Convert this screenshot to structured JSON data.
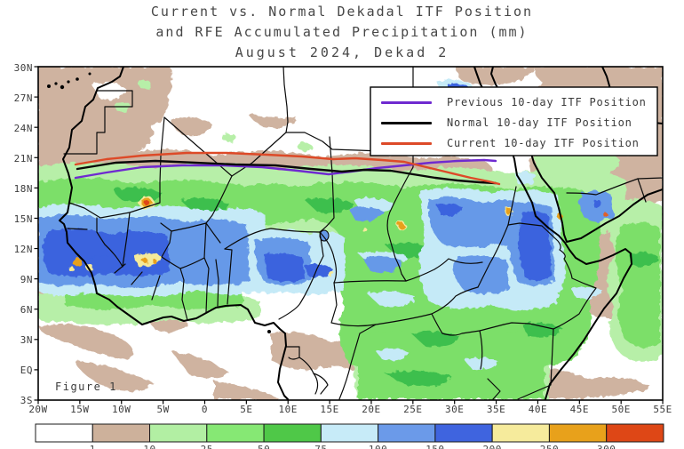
{
  "title": {
    "line1": "Current vs. Normal Dekadal ITF Position",
    "line2": "and RFE Accumulated Precipitation (mm)",
    "line3": "August 2024, Dekad 2"
  },
  "figure_label": "Figure 1",
  "legend": {
    "items": [
      {
        "label": "Previous 10-day ITF Position",
        "color": "#6f2ad0"
      },
      {
        "label": "Normal 10-day ITF Position",
        "color": "#0a0a0a"
      },
      {
        "label": "Current 10-day ITF Position",
        "color": "#dd4a28"
      }
    ]
  },
  "axes": {
    "x_ticks": [
      "20W",
      "15W",
      "10W",
      "5W",
      "0",
      "5E",
      "10E",
      "15E",
      "20E",
      "25E",
      "30E",
      "35E",
      "40E",
      "45E",
      "50E",
      "55E"
    ],
    "y_ticks": [
      "30N",
      "27N",
      "24N",
      "21N",
      "18N",
      "15N",
      "12N",
      "9N",
      "6N",
      "3N",
      "EQ",
      "3S"
    ]
  },
  "colorbar": {
    "labels": [
      "1",
      "10",
      "25",
      "50",
      "75",
      "100",
      "150",
      "200",
      "250",
      "300"
    ],
    "colors": [
      "#ffffff",
      "#cdb19b",
      "#b2efa3",
      "#86e874",
      "#4fc848",
      "#c7ebf8",
      "#6b9ae9",
      "#3f64df",
      "#f6eb9c",
      "#e8a11b",
      "#de4716"
    ]
  },
  "chart_data": {
    "type": "heatmap",
    "title": "Current vs. Normal Dekadal ITF Position and RFE Accumulated Precipitation (mm), August 2024, Dekad 2",
    "region": {
      "lon_range": [
        "20W",
        "55E"
      ],
      "lat_range": [
        "3S",
        "30N"
      ],
      "grid": false
    },
    "colorbar": {
      "label": "RFE accumulated precipitation (mm)",
      "thresholds": [
        1,
        10,
        25,
        50,
        75,
        100,
        150,
        200,
        250,
        300
      ],
      "colors": [
        "#ffffff",
        "#cdb19b",
        "#b2efa3",
        "#86e874",
        "#4fc848",
        "#c7ebf8",
        "#6b9ae9",
        "#3f64df",
        "#f6eb9c",
        "#e8a11b",
        "#de4716"
      ]
    },
    "legend_position": "top-right",
    "series": [
      {
        "name": "Previous 10-day ITF Position",
        "color": "#6f2ad0",
        "points_lon_lat": [
          [
            -15.5,
            19.0
          ],
          [
            -11.7,
            19.5
          ],
          [
            -7.5,
            20.0
          ],
          [
            -2.7,
            20.2
          ],
          [
            2.1,
            20.2
          ],
          [
            6.9,
            20.0
          ],
          [
            11.2,
            19.7
          ],
          [
            14.9,
            19.3
          ],
          [
            17.6,
            19.6
          ],
          [
            20.8,
            19.9
          ],
          [
            24.0,
            20.2
          ],
          [
            27.2,
            20.5
          ],
          [
            30.4,
            20.6
          ],
          [
            33.6,
            20.7
          ],
          [
            34.9,
            20.6
          ]
        ]
      },
      {
        "name": "Normal 10-day ITF Position",
        "color": "#0a0a0a",
        "points_lon_lat": [
          [
            -15.3,
            19.9
          ],
          [
            -10.7,
            20.5
          ],
          [
            -5.9,
            20.6
          ],
          [
            -1.1,
            20.5
          ],
          [
            3.7,
            20.3
          ],
          [
            8.5,
            20.2
          ],
          [
            12.8,
            19.9
          ],
          [
            16.5,
            19.6
          ],
          [
            19.2,
            19.8
          ],
          [
            22.4,
            19.7
          ],
          [
            25.0,
            19.3
          ],
          [
            27.7,
            19.0
          ],
          [
            30.4,
            18.7
          ],
          [
            33.0,
            18.5
          ],
          [
            34.9,
            18.4
          ]
        ]
      },
      {
        "name": "Current 10-day ITF Position",
        "color": "#dd4a28",
        "points_lon_lat": [
          [
            -15.5,
            20.3
          ],
          [
            -11.8,
            20.8
          ],
          [
            -7.5,
            21.2
          ],
          [
            -2.2,
            21.4
          ],
          [
            2.6,
            21.4
          ],
          [
            7.4,
            21.3
          ],
          [
            11.7,
            21.1
          ],
          [
            15.4,
            20.8
          ],
          [
            18.1,
            20.9
          ],
          [
            21.3,
            20.7
          ],
          [
            24.0,
            20.6
          ],
          [
            26.6,
            20.0
          ],
          [
            29.3,
            19.5
          ],
          [
            32.0,
            19.0
          ],
          [
            34.1,
            18.6
          ],
          [
            35.4,
            18.4
          ]
        ]
      }
    ],
    "annotations": [
      "Figure 1"
    ]
  }
}
